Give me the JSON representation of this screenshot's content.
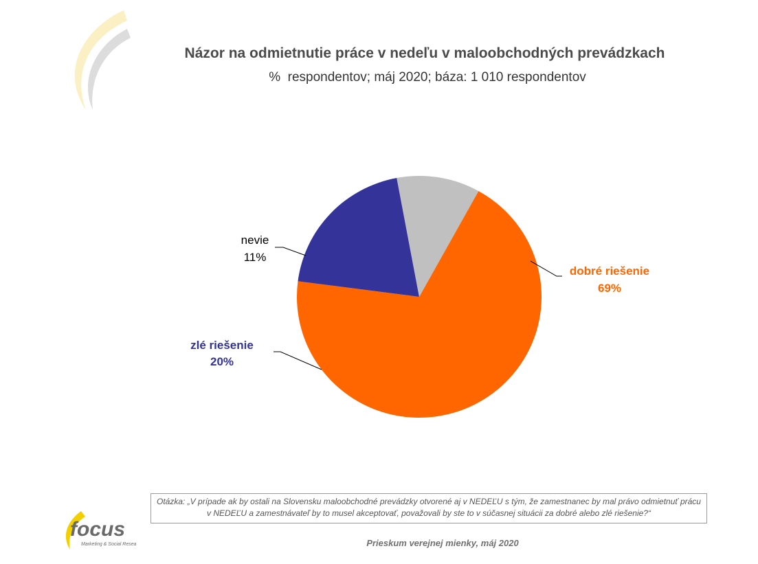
{
  "title": "Názor na odmietnutie práce v nedeľu v maloobchodných prevádzkach",
  "subtitle": "%  respondentov; máj 2020; báza: 1 010 respondentov",
  "question": "Otázka: „V prípade ak by ostali na Slovensku maloobchodné prevádzky otvorené aj v NEDEĽU s tým, že zamestnanec by mal právo odmietnuť prácu v NEDEĽU a zamestnávateľ by to musel akceptovať, považovali by ste to v súčasnej situácii za dobré alebo zlé riešenie?“",
  "footer": "Prieskum verejnej mienky, máj 2020",
  "logo": {
    "text": "focus",
    "tagline": "Marketing & Social Research"
  },
  "colors": {
    "dobre": "#FF6600",
    "zle": "#333399",
    "nevie": "#C0C0C0"
  },
  "chart_data": {
    "type": "pie",
    "title": "Názor na odmietnutie práce v nedeľu v maloobchodných prevádzkach",
    "slices": [
      {
        "label": "dobré riešenie",
        "value": 69,
        "value_label": "69%",
        "color": "#FF6600",
        "label_color": "#FF6600"
      },
      {
        "label": "zlé riešenie",
        "value": 20,
        "value_label": "20%",
        "color": "#333399",
        "label_color": "#333399"
      },
      {
        "label": "nevie",
        "value": 11,
        "value_label": "11%",
        "color": "#C0C0C0",
        "label_color": "#000000"
      }
    ],
    "legend": "none"
  }
}
